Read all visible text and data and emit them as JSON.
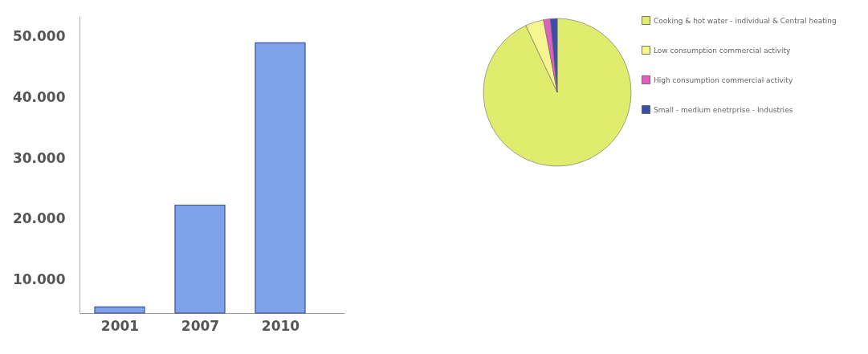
{
  "chart_data": [
    {
      "type": "bar",
      "categories": [
        "2001",
        "2007",
        "2010"
      ],
      "values": [
        5600,
        22300,
        48900
      ],
      "color": "#7fa3ea",
      "ylim": [
        4600,
        53300
      ],
      "yticks": [
        {
          "value": 10000,
          "label": "10.000"
        },
        {
          "value": 20000,
          "label": "20.000"
        },
        {
          "value": 30000,
          "label": "30.000"
        },
        {
          "value": 40000,
          "label": "40.000"
        },
        {
          "value": 50000,
          "label": "50.000"
        }
      ],
      "grid": false
    },
    {
      "type": "pie",
      "categories": [
        "Cooking & hot water - individual & Central heating",
        "Low consumption commercial activity",
        "High consumption commercial activity",
        "Small - medium enetrprise - Industries"
      ],
      "values": [
        93,
        4,
        1.5,
        1.5
      ],
      "colors": [
        "#e0ec6e",
        "#f6f68e",
        "#e060c0",
        "#3a50a8"
      ],
      "legend": "right"
    }
  ]
}
